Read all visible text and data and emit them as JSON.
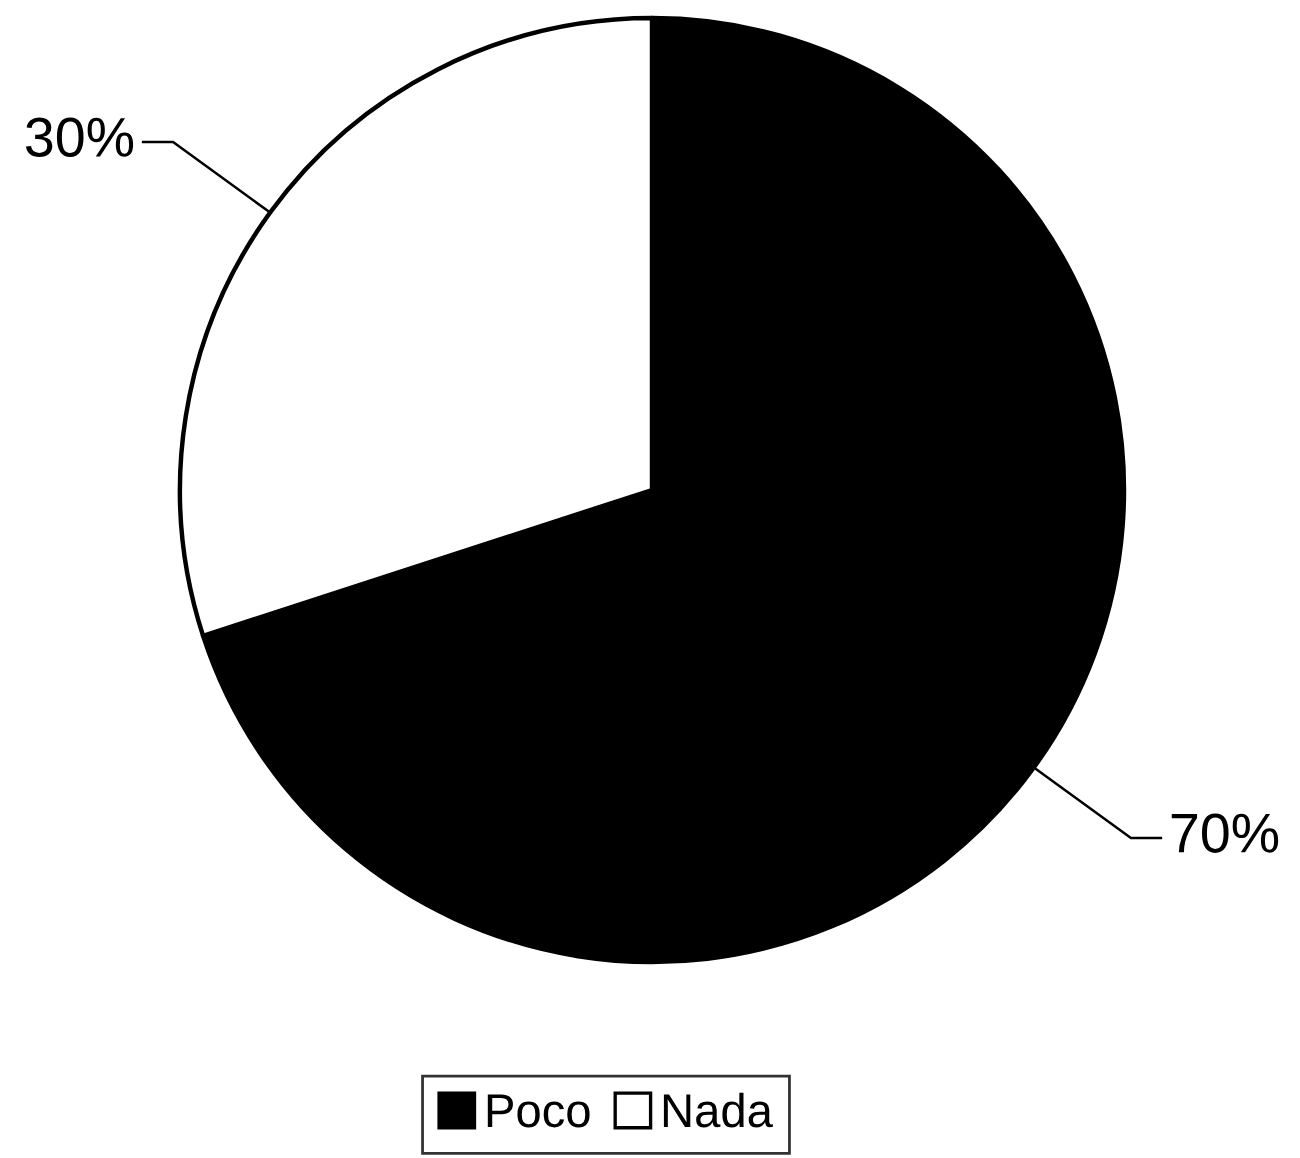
{
  "chart_data": {
    "type": "pie",
    "categories": [
      "Poco",
      "Nada"
    ],
    "values": [
      70,
      30
    ],
    "colors": [
      "#000000",
      "#ffffff"
    ],
    "value_labels": [
      "70%",
      "30%"
    ],
    "legend": "bottom"
  }
}
